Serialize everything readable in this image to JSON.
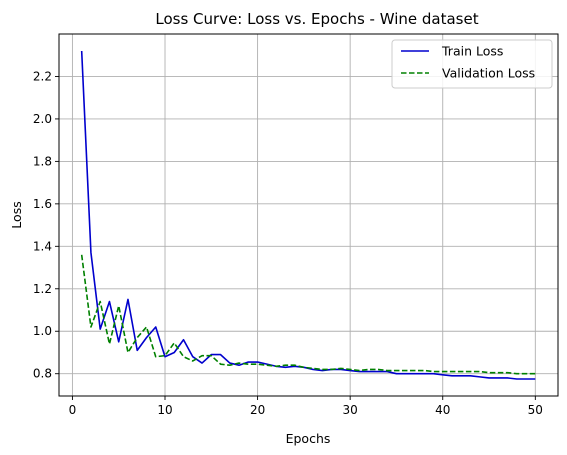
{
  "chart_data": {
    "type": "line",
    "title": "Loss Curve: Loss  vs. Epochs - Wine dataset",
    "xlabel": "Epochs",
    "ylabel": "Loss",
    "xlim": [
      -1.45,
      52.45
    ],
    "ylim": [
      0.695,
      2.4
    ],
    "xticks": [
      0,
      10,
      20,
      30,
      40,
      50
    ],
    "yticks": [
      0.8,
      1.0,
      1.2,
      1.4,
      1.6,
      1.8,
      2.0,
      2.2
    ],
    "ytick_labels": [
      "0.8",
      "1.0",
      "1.2",
      "1.4",
      "1.6",
      "1.8",
      "2.0",
      "2.2"
    ],
    "grid": true,
    "legend_position": "top-right",
    "x": [
      1,
      2,
      3,
      4,
      5,
      6,
      7,
      8,
      9,
      10,
      11,
      12,
      13,
      14,
      15,
      16,
      17,
      18,
      19,
      20,
      21,
      22,
      23,
      24,
      25,
      26,
      27,
      28,
      29,
      30,
      31,
      32,
      33,
      34,
      35,
      36,
      37,
      38,
      39,
      40,
      41,
      42,
      43,
      44,
      45,
      46,
      47,
      48,
      49,
      50
    ],
    "series": [
      {
        "name": "Train Loss",
        "color": "#0000cd",
        "dash": "solid",
        "values": [
          2.32,
          1.37,
          1.01,
          1.14,
          0.95,
          1.15,
          0.91,
          0.97,
          1.02,
          0.88,
          0.9,
          0.96,
          0.88,
          0.85,
          0.89,
          0.89,
          0.85,
          0.84,
          0.855,
          0.855,
          0.845,
          0.835,
          0.83,
          0.835,
          0.83,
          0.82,
          0.815,
          0.82,
          0.82,
          0.815,
          0.81,
          0.81,
          0.81,
          0.81,
          0.8,
          0.8,
          0.8,
          0.8,
          0.8,
          0.795,
          0.79,
          0.79,
          0.79,
          0.785,
          0.78,
          0.78,
          0.78,
          0.775,
          0.775,
          0.775
        ]
      },
      {
        "name": "Validation Loss",
        "color": "#008000",
        "dash": "dashed",
        "values": [
          1.36,
          1.02,
          1.14,
          0.94,
          1.12,
          0.9,
          0.97,
          1.02,
          0.88,
          0.885,
          0.945,
          0.88,
          0.86,
          0.885,
          0.885,
          0.845,
          0.84,
          0.85,
          0.845,
          0.845,
          0.84,
          0.835,
          0.84,
          0.84,
          0.83,
          0.825,
          0.82,
          0.82,
          0.825,
          0.82,
          0.815,
          0.82,
          0.82,
          0.815,
          0.815,
          0.815,
          0.815,
          0.815,
          0.81,
          0.81,
          0.81,
          0.81,
          0.81,
          0.81,
          0.805,
          0.805,
          0.805,
          0.8,
          0.8,
          0.8
        ]
      }
    ]
  }
}
